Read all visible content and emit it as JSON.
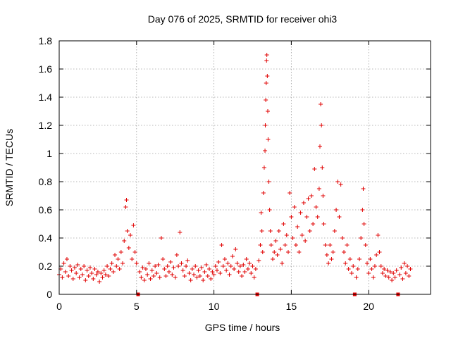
{
  "chart_data": {
    "type": "scatter",
    "title": "Day 076 of 2025, SRMTID for receiver ohi3",
    "xlabel": "GPS time / hours",
    "ylabel": "SRMTID / TECUs",
    "xlim": [
      0,
      24
    ],
    "ylim": [
      0,
      1.8
    ],
    "xticks": [
      0,
      5,
      10,
      15,
      20
    ],
    "xtick_labels": [
      "0",
      "5",
      "10",
      "15",
      "20"
    ],
    "yticks": [
      0,
      0.2,
      0.4,
      0.6,
      0.8,
      1.0,
      1.2,
      1.4,
      1.6,
      1.8
    ],
    "ytick_labels": [
      "0",
      "0.2",
      "0.4",
      "0.6",
      "0.8",
      "1",
      "1.2",
      "1.4",
      "1.6",
      "1.8"
    ],
    "grid": true,
    "marker": "+",
    "color": "#e00000",
    "gap_markers_x": [
      5.1,
      12.8,
      19.1,
      21.9
    ],
    "series": [
      {
        "name": "SRMTID",
        "points": [
          [
            0.0,
            0.14
          ],
          [
            0.1,
            0.18
          ],
          [
            0.2,
            0.12
          ],
          [
            0.3,
            0.22
          ],
          [
            0.4,
            0.16
          ],
          [
            0.5,
            0.25
          ],
          [
            0.6,
            0.13
          ],
          [
            0.7,
            0.2
          ],
          [
            0.8,
            0.17
          ],
          [
            0.9,
            0.11
          ],
          [
            1.0,
            0.19
          ],
          [
            1.1,
            0.15
          ],
          [
            1.2,
            0.21
          ],
          [
            1.3,
            0.12
          ],
          [
            1.4,
            0.18
          ],
          [
            1.5,
            0.14
          ],
          [
            1.6,
            0.2
          ],
          [
            1.7,
            0.1
          ],
          [
            1.8,
            0.17
          ],
          [
            1.9,
            0.13
          ],
          [
            2.0,
            0.19
          ],
          [
            2.1,
            0.15
          ],
          [
            2.2,
            0.11
          ],
          [
            2.3,
            0.18
          ],
          [
            2.4,
            0.14
          ],
          [
            2.5,
            0.16
          ],
          [
            2.6,
            0.09
          ],
          [
            2.7,
            0.15
          ],
          [
            2.8,
            0.12
          ],
          [
            2.9,
            0.17
          ],
          [
            3.0,
            0.14
          ],
          [
            3.1,
            0.2
          ],
          [
            3.2,
            0.13
          ],
          [
            3.3,
            0.18
          ],
          [
            3.4,
            0.22
          ],
          [
            3.5,
            0.16
          ],
          [
            3.6,
            0.28
          ],
          [
            3.7,
            0.2
          ],
          [
            3.8,
            0.25
          ],
          [
            3.9,
            0.18
          ],
          [
            4.0,
            0.3
          ],
          [
            4.1,
            0.22
          ],
          [
            4.2,
            0.38
          ],
          [
            4.3,
            0.62
          ],
          [
            4.35,
            0.67
          ],
          [
            4.4,
            0.45
          ],
          [
            4.5,
            0.33
          ],
          [
            4.6,
            0.42
          ],
          [
            4.7,
            0.25
          ],
          [
            4.8,
            0.49
          ],
          [
            4.9,
            0.3
          ],
          [
            5.0,
            0.22
          ],
          [
            5.2,
            0.16
          ],
          [
            5.3,
            0.12
          ],
          [
            5.4,
            0.19
          ],
          [
            5.5,
            0.1
          ],
          [
            5.6,
            0.18
          ],
          [
            5.7,
            0.14
          ],
          [
            5.8,
            0.22
          ],
          [
            5.9,
            0.11
          ],
          [
            6.0,
            0.17
          ],
          [
            6.1,
            0.13
          ],
          [
            6.2,
            0.2
          ],
          [
            6.3,
            0.15
          ],
          [
            6.4,
            0.21
          ],
          [
            6.5,
            0.12
          ],
          [
            6.6,
            0.4
          ],
          [
            6.7,
            0.25
          ],
          [
            6.8,
            0.18
          ],
          [
            6.9,
            0.13
          ],
          [
            7.0,
            0.2
          ],
          [
            7.1,
            0.16
          ],
          [
            7.2,
            0.23
          ],
          [
            7.3,
            0.14
          ],
          [
            7.4,
            0.19
          ],
          [
            7.5,
            0.12
          ],
          [
            7.6,
            0.28
          ],
          [
            7.7,
            0.2
          ],
          [
            7.8,
            0.44
          ],
          [
            7.9,
            0.22
          ],
          [
            8.0,
            0.17
          ],
          [
            8.1,
            0.13
          ],
          [
            8.2,
            0.2
          ],
          [
            8.3,
            0.24
          ],
          [
            8.4,
            0.15
          ],
          [
            8.5,
            0.1
          ],
          [
            8.6,
            0.18
          ],
          [
            8.7,
            0.14
          ],
          [
            8.8,
            0.2
          ],
          [
            8.9,
            0.12
          ],
          [
            9.0,
            0.17
          ],
          [
            9.1,
            0.13
          ],
          [
            9.2,
            0.19
          ],
          [
            9.3,
            0.1
          ],
          [
            9.4,
            0.16
          ],
          [
            9.5,
            0.21
          ],
          [
            9.6,
            0.13
          ],
          [
            9.7,
            0.18
          ],
          [
            9.8,
            0.11
          ],
          [
            9.9,
            0.16
          ],
          [
            10.0,
            0.14
          ],
          [
            10.1,
            0.2
          ],
          [
            10.2,
            0.17
          ],
          [
            10.3,
            0.23
          ],
          [
            10.4,
            0.15
          ],
          [
            10.5,
            0.35
          ],
          [
            10.6,
            0.2
          ],
          [
            10.7,
            0.25
          ],
          [
            10.8,
            0.17
          ],
          [
            10.9,
            0.22
          ],
          [
            11.0,
            0.14
          ],
          [
            11.1,
            0.2
          ],
          [
            11.2,
            0.27
          ],
          [
            11.3,
            0.18
          ],
          [
            11.4,
            0.32
          ],
          [
            11.5,
            0.22
          ],
          [
            11.6,
            0.16
          ],
          [
            11.7,
            0.2
          ],
          [
            11.8,
            0.13
          ],
          [
            11.9,
            0.21
          ],
          [
            12.0,
            0.16
          ],
          [
            12.1,
            0.25
          ],
          [
            12.2,
            0.18
          ],
          [
            12.3,
            0.22
          ],
          [
            12.4,
            0.15
          ],
          [
            12.5,
            0.2
          ],
          [
            12.6,
            0.12
          ],
          [
            12.7,
            0.18
          ],
          [
            12.9,
            0.24
          ],
          [
            13.0,
            0.35
          ],
          [
            13.05,
            0.58
          ],
          [
            13.1,
            0.45
          ],
          [
            13.15,
            0.3
          ],
          [
            13.2,
            0.72
          ],
          [
            13.25,
            0.9
          ],
          [
            13.3,
            1.02
          ],
          [
            13.32,
            1.2
          ],
          [
            13.35,
            1.38
          ],
          [
            13.38,
            1.5
          ],
          [
            13.4,
            1.66
          ],
          [
            13.42,
            1.7
          ],
          [
            13.45,
            1.55
          ],
          [
            13.48,
            1.3
          ],
          [
            13.5,
            1.1
          ],
          [
            13.55,
            0.8
          ],
          [
            13.6,
            0.6
          ],
          [
            13.65,
            0.45
          ],
          [
            13.7,
            0.35
          ],
          [
            13.8,
            0.25
          ],
          [
            13.9,
            0.3
          ],
          [
            14.0,
            0.38
          ],
          [
            14.1,
            0.28
          ],
          [
            14.2,
            0.45
          ],
          [
            14.3,
            0.32
          ],
          [
            14.4,
            0.22
          ],
          [
            14.5,
            0.5
          ],
          [
            14.6,
            0.35
          ],
          [
            14.7,
            0.42
          ],
          [
            14.8,
            0.3
          ],
          [
            14.9,
            0.72
          ],
          [
            15.0,
            0.55
          ],
          [
            15.1,
            0.4
          ],
          [
            15.2,
            0.62
          ],
          [
            15.3,
            0.35
          ],
          [
            15.4,
            0.48
          ],
          [
            15.5,
            0.3
          ],
          [
            15.6,
            0.58
          ],
          [
            15.7,
            0.42
          ],
          [
            15.8,
            0.65
          ],
          [
            15.9,
            0.38
          ],
          [
            16.0,
            0.55
          ],
          [
            16.1,
            0.68
          ],
          [
            16.2,
            0.45
          ],
          [
            16.3,
            0.7
          ],
          [
            16.4,
            0.5
          ],
          [
            16.5,
            0.89
          ],
          [
            16.6,
            0.62
          ],
          [
            16.7,
            0.55
          ],
          [
            16.8,
            0.75
          ],
          [
            16.85,
            1.05
          ],
          [
            16.9,
            1.35
          ],
          [
            16.95,
            1.2
          ],
          [
            17.0,
            0.9
          ],
          [
            17.05,
            0.7
          ],
          [
            17.1,
            0.5
          ],
          [
            17.2,
            0.35
          ],
          [
            17.3,
            0.28
          ],
          [
            17.4,
            0.22
          ],
          [
            17.5,
            0.35
          ],
          [
            17.6,
            0.25
          ],
          [
            17.7,
            0.3
          ],
          [
            17.8,
            0.45
          ],
          [
            17.9,
            0.6
          ],
          [
            18.0,
            0.8
          ],
          [
            18.1,
            0.55
          ],
          [
            18.2,
            0.78
          ],
          [
            18.3,
            0.4
          ],
          [
            18.4,
            0.3
          ],
          [
            18.5,
            0.22
          ],
          [
            18.6,
            0.35
          ],
          [
            18.7,
            0.18
          ],
          [
            18.8,
            0.25
          ],
          [
            18.9,
            0.15
          ],
          [
            19.0,
            0.2
          ],
          [
            19.2,
            0.12
          ],
          [
            19.3,
            0.18
          ],
          [
            19.4,
            0.25
          ],
          [
            19.5,
            0.4
          ],
          [
            19.6,
            0.6
          ],
          [
            19.65,
            0.75
          ],
          [
            19.7,
            0.5
          ],
          [
            19.8,
            0.35
          ],
          [
            19.9,
            0.22
          ],
          [
            20.0,
            0.15
          ],
          [
            20.1,
            0.25
          ],
          [
            20.2,
            0.18
          ],
          [
            20.3,
            0.12
          ],
          [
            20.4,
            0.2
          ],
          [
            20.5,
            0.28
          ],
          [
            20.6,
            0.42
          ],
          [
            20.7,
            0.3
          ],
          [
            20.8,
            0.2
          ],
          [
            20.9,
            0.15
          ],
          [
            21.0,
            0.18
          ],
          [
            21.1,
            0.13
          ],
          [
            21.2,
            0.17
          ],
          [
            21.3,
            0.12
          ],
          [
            21.4,
            0.16
          ],
          [
            21.5,
            0.1
          ],
          [
            21.6,
            0.15
          ],
          [
            21.7,
            0.12
          ],
          [
            21.8,
            0.17
          ],
          [
            22.0,
            0.14
          ],
          [
            22.1,
            0.19
          ],
          [
            22.2,
            0.11
          ],
          [
            22.3,
            0.22
          ],
          [
            22.4,
            0.15
          ],
          [
            22.5,
            0.2
          ],
          [
            22.6,
            0.13
          ],
          [
            22.7,
            0.18
          ]
        ]
      }
    ]
  }
}
